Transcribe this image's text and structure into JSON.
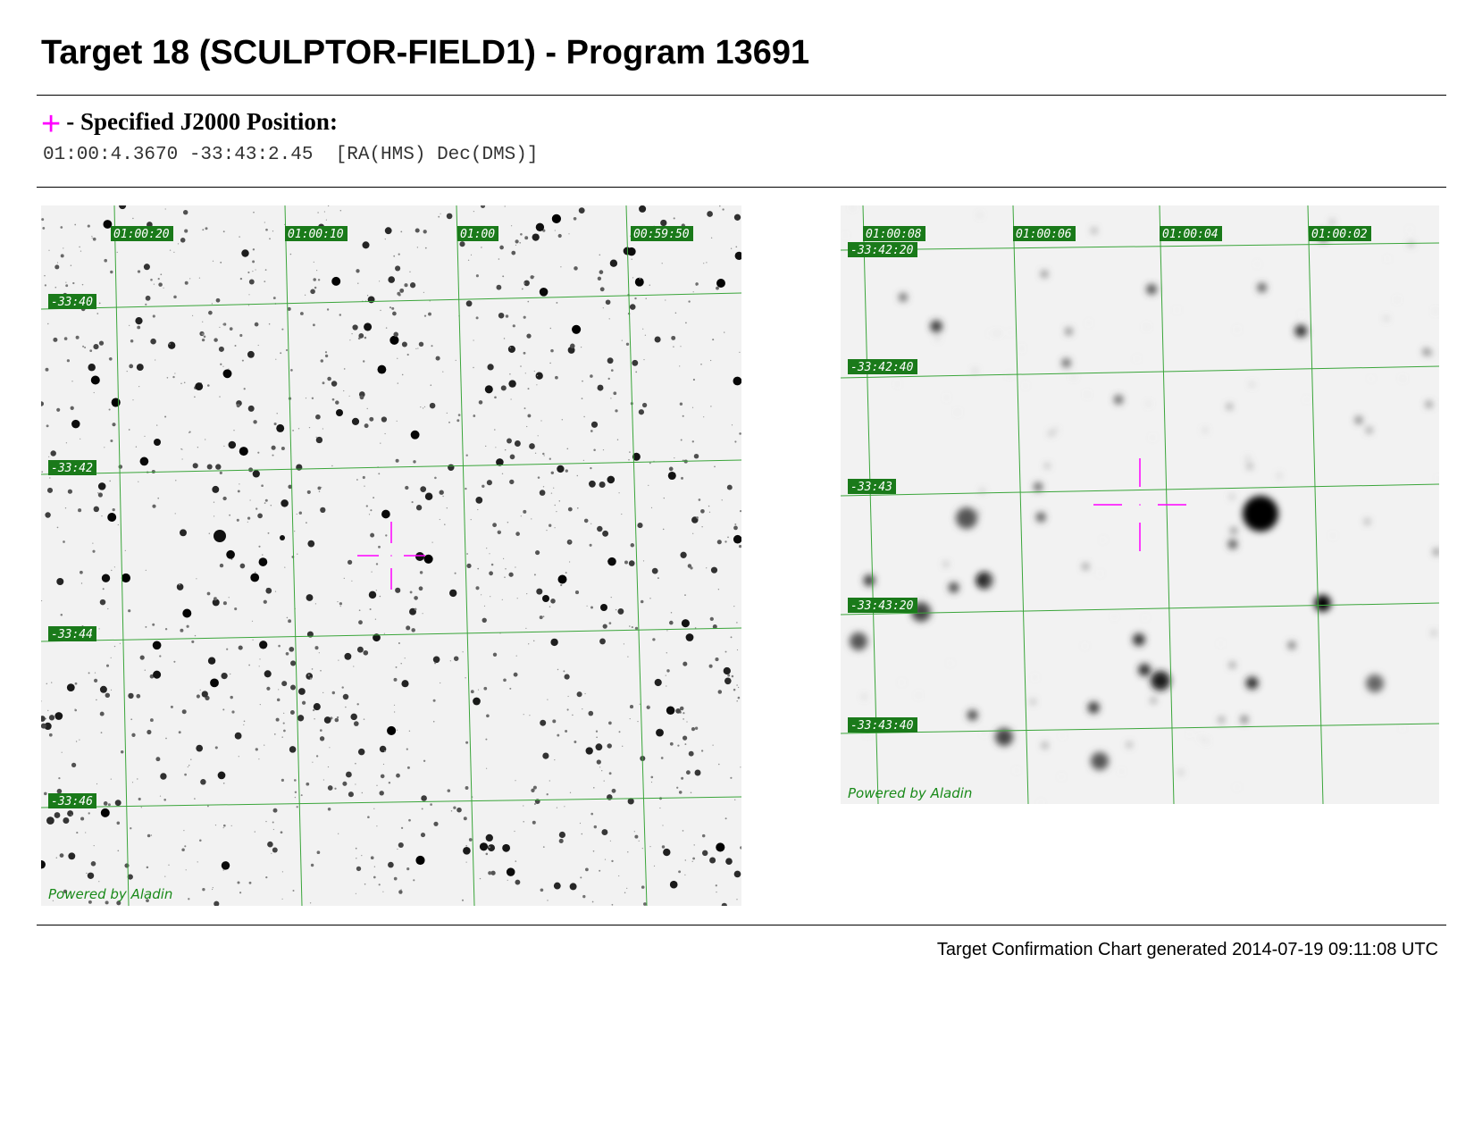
{
  "title": "Target 18 (SCULPTOR-FIELD1) - Program 13691",
  "position": {
    "marker_symbol": "+",
    "label": "- Specified J2000 Position:",
    "coordinates": "01:00:4.3670 -33:43:2.45  [RA(HMS) Dec(DMS)]"
  },
  "charts": [
    {
      "name": "wide-field",
      "ra_labels": [
        "01:00:20",
        "01:00:10",
        "01:00",
        "00:59:50"
      ],
      "dec_labels": [
        "-33:40",
        "-33:42",
        "-33:44",
        "-33:46"
      ],
      "credit": "Powered by Aladin"
    },
    {
      "name": "zoom-field",
      "ra_labels": [
        "01:00:08",
        "01:00:06",
        "01:00:04",
        "01:00:02"
      ],
      "dec_labels": [
        "-33:42:20",
        "-33:42:40",
        "-33:43",
        "-33:43:20",
        "-33:43:40"
      ],
      "credit": "Powered by Aladin"
    }
  ],
  "footer": "Target Confirmation Chart generated 2014-07-19 09:11:08 UTC",
  "colors": {
    "grid": "#3aa53a",
    "label_bg": "#1a7a1a",
    "marker": "#ff00ff"
  }
}
